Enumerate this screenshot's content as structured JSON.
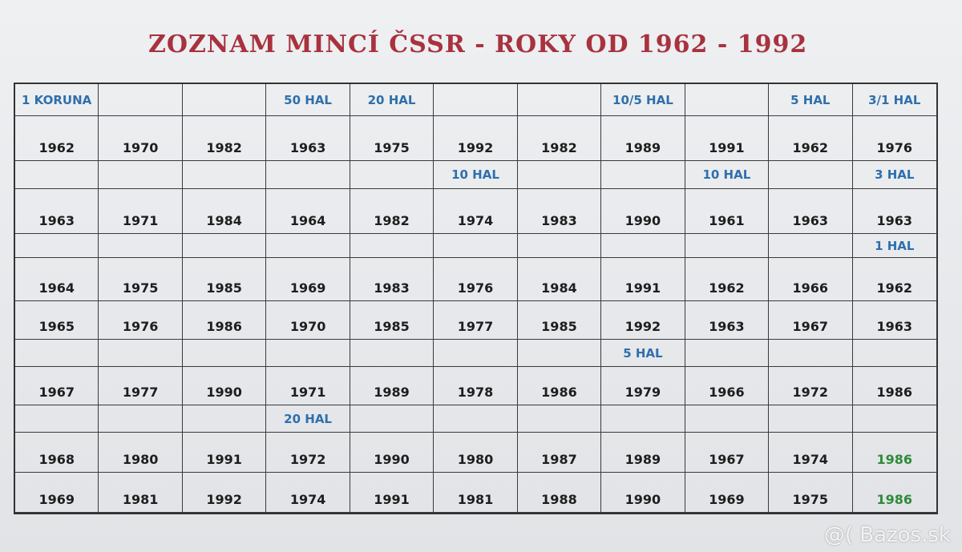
{
  "title": "ZOZNAM MINCÍ ČSSR - ROKY OD 1962 - 1992",
  "watermark": "@( Bazos.sk",
  "colors": {
    "title": "#a8323e",
    "label": "#2f6fad",
    "green": "#2e8b3a",
    "text": "#1e1e1e"
  },
  "table": [
    [
      "1 KORUNA",
      "",
      "",
      "50 HAL",
      "20 HAL",
      "",
      "",
      "10/5 HAL",
      "",
      "5 HAL",
      "3/1 HAL"
    ],
    [
      "1962",
      "1970",
      "1982",
      "1963",
      "1975",
      "1992",
      "1982",
      "1989",
      "1991",
      "1962",
      "1976"
    ],
    [
      "",
      "",
      "",
      "",
      "",
      "10 HAL",
      "",
      "",
      "10 HAL",
      "",
      "3 HAL"
    ],
    [
      "1963",
      "1971",
      "1984",
      "1964",
      "1982",
      "1974",
      "1983",
      "1990",
      "1961",
      "1963",
      "1963"
    ],
    [
      "",
      "",
      "",
      "",
      "",
      "",
      "",
      "",
      "",
      "",
      "1 HAL"
    ],
    [
      "1964",
      "1975",
      "1985",
      "1969",
      "1983",
      "1976",
      "1984",
      "1991",
      "1962",
      "1966",
      "1962"
    ],
    [
      "1965",
      "1976",
      "1986",
      "1970",
      "1985",
      "1977",
      "1985",
      "1992",
      "1963",
      "1967",
      "1963"
    ],
    [
      "",
      "",
      "",
      "",
      "",
      "",
      "",
      "5 HAL",
      "",
      "",
      ""
    ],
    [
      "1967",
      "1977",
      "1990",
      "1971",
      "1989",
      "1978",
      "1986",
      "1979",
      "1966",
      "1972",
      "1986"
    ],
    [
      "",
      "",
      "",
      "20 HAL",
      "",
      "",
      "",
      "",
      "",
      "",
      ""
    ],
    [
      "1968",
      "1980",
      "1991",
      "1972",
      "1990",
      "1980",
      "1987",
      "1989",
      "1967",
      "1974",
      "1986"
    ],
    [
      "1969",
      "1981",
      "1992",
      "1974",
      "1991",
      "1981",
      "1988",
      "1990",
      "1969",
      "1975",
      "1986"
    ]
  ],
  "label_rows": [
    0,
    2,
    4,
    7,
    9
  ],
  "green_cells": [
    [
      10,
      10
    ],
    [
      11,
      10
    ]
  ]
}
